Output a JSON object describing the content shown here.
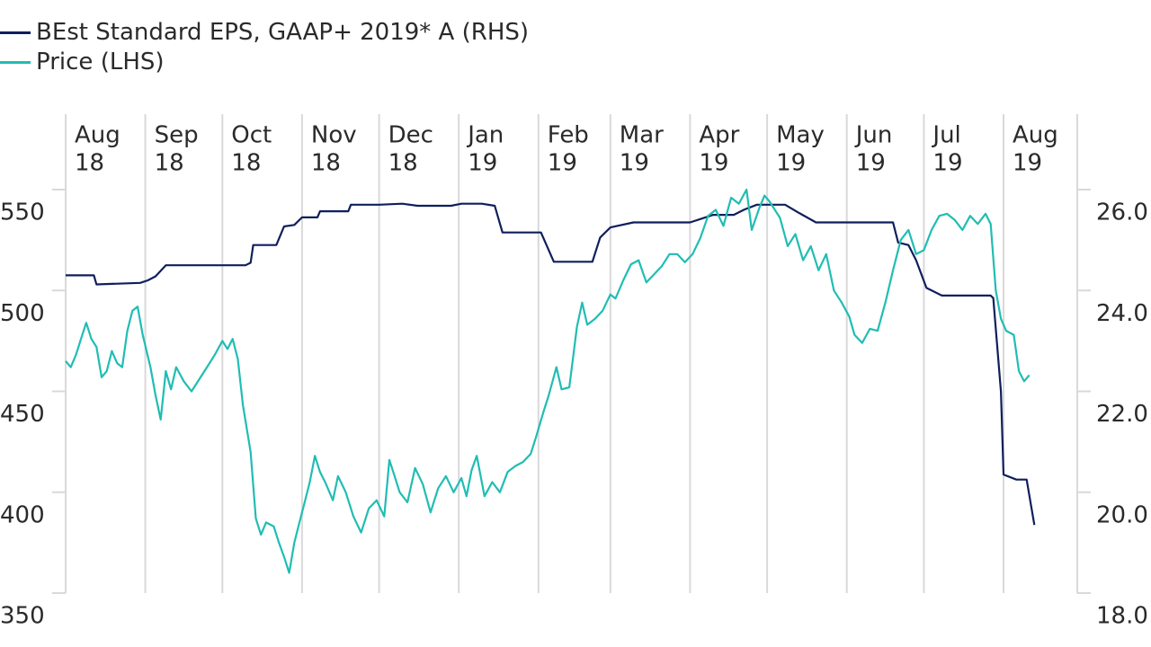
{
  "colors": {
    "eps": "#0f1f5c",
    "price": "#20bdb3",
    "grid": "#d9d9d9",
    "text": "#2a2a2a"
  },
  "legend": {
    "eps_label": "BEst Standard EPS, GAAP+ 2019* A (RHS)",
    "price_label": "Price (LHS)"
  },
  "chart_data": {
    "type": "line",
    "title": "",
    "months": [
      {
        "month": "Aug",
        "year": "18",
        "date": "2018-08-01"
      },
      {
        "month": "Sep",
        "year": "18",
        "date": "2018-09-01"
      },
      {
        "month": "Oct",
        "year": "18",
        "date": "2018-10-01"
      },
      {
        "month": "Nov",
        "year": "18",
        "date": "2018-11-01"
      },
      {
        "month": "Dec",
        "year": "18",
        "date": "2018-12-01"
      },
      {
        "month": "Jan",
        "year": "19",
        "date": "2019-01-01"
      },
      {
        "month": "Feb",
        "year": "19",
        "date": "2019-02-01"
      },
      {
        "month": "Mar",
        "year": "19",
        "date": "2019-03-01"
      },
      {
        "month": "Apr",
        "year": "19",
        "date": "2019-04-01"
      },
      {
        "month": "May",
        "year": "19",
        "date": "2019-05-01"
      },
      {
        "month": "Jun",
        "year": "19",
        "date": "2019-06-01"
      },
      {
        "month": "Jul",
        "year": "19",
        "date": "2019-07-01"
      },
      {
        "month": "Aug",
        "year": "19",
        "date": "2019-08-01"
      }
    ],
    "left_axis": {
      "label": "",
      "range": [
        350,
        550
      ],
      "ticks": [
        "350",
        "400",
        "450",
        "500",
        "550"
      ]
    },
    "right_axis": {
      "label": "",
      "range": [
        18.0,
        26.0
      ],
      "ticks": [
        "18.0",
        "20.0",
        "22.0",
        "24.0",
        "26.0"
      ]
    },
    "grid": "vertical at month starts",
    "legend_position": "top-left",
    "series": [
      {
        "name": "BEst Standard EPS, GAAP+ 2019* A (RHS)",
        "axis": "right",
        "points": [
          [
            "2018-08-01",
            24.3
          ],
          [
            "2018-08-12",
            24.3
          ],
          [
            "2018-08-13",
            24.12
          ],
          [
            "2018-08-30",
            24.15
          ],
          [
            "2018-09-02",
            24.2
          ],
          [
            "2018-09-05",
            24.28
          ],
          [
            "2018-09-09",
            24.5
          ],
          [
            "2018-09-25",
            24.5
          ],
          [
            "2018-10-10",
            24.5
          ],
          [
            "2018-10-12",
            24.55
          ],
          [
            "2018-10-13",
            24.9
          ],
          [
            "2018-10-22",
            24.9
          ],
          [
            "2018-10-25",
            25.27
          ],
          [
            "2018-10-29",
            25.3
          ],
          [
            "2018-11-01",
            25.45
          ],
          [
            "2018-11-07",
            25.45
          ],
          [
            "2018-11-08",
            25.57
          ],
          [
            "2018-11-19",
            25.57
          ],
          [
            "2018-11-20",
            25.7
          ],
          [
            "2018-12-01",
            25.7
          ],
          [
            "2018-12-10",
            25.72
          ],
          [
            "2018-12-16",
            25.68
          ],
          [
            "2018-12-29",
            25.68
          ],
          [
            "2019-01-02",
            25.72
          ],
          [
            "2019-01-10",
            25.72
          ],
          [
            "2019-01-15",
            25.68
          ],
          [
            "2019-01-18",
            25.15
          ],
          [
            "2019-02-02",
            25.15
          ],
          [
            "2019-02-07",
            24.57
          ],
          [
            "2019-02-22",
            24.57
          ],
          [
            "2019-02-25",
            25.05
          ],
          [
            "2019-03-01",
            25.25
          ],
          [
            "2019-03-10",
            25.35
          ],
          [
            "2019-03-25",
            25.35
          ],
          [
            "2019-04-01",
            25.35
          ],
          [
            "2019-04-07",
            25.45
          ],
          [
            "2019-04-10",
            25.5
          ],
          [
            "2019-04-18",
            25.5
          ],
          [
            "2019-04-22",
            25.6
          ],
          [
            "2019-04-27",
            25.7
          ],
          [
            "2019-05-08",
            25.7
          ],
          [
            "2019-05-13",
            25.55
          ],
          [
            "2019-05-20",
            25.35
          ],
          [
            "2019-05-30",
            25.35
          ],
          [
            "2019-06-19",
            25.35
          ],
          [
            "2019-06-21",
            24.95
          ],
          [
            "2019-06-25",
            24.9
          ],
          [
            "2019-06-28",
            24.6
          ],
          [
            "2019-07-02",
            24.05
          ],
          [
            "2019-07-08",
            23.9
          ],
          [
            "2019-07-27",
            23.9
          ],
          [
            "2019-07-28",
            23.85
          ],
          [
            "2019-07-31",
            22.0
          ],
          [
            "2019-08-01",
            20.35
          ],
          [
            "2019-08-06",
            20.25
          ],
          [
            "2019-08-10",
            20.25
          ],
          [
            "2019-08-13",
            19.35
          ]
        ]
      },
      {
        "name": "Price (LHS)",
        "axis": "left",
        "points": [
          [
            "2018-08-01",
            465
          ],
          [
            "2018-08-03",
            462
          ],
          [
            "2018-08-05",
            468
          ],
          [
            "2018-08-07",
            476
          ],
          [
            "2018-08-09",
            484
          ],
          [
            "2018-08-11",
            476
          ],
          [
            "2018-08-13",
            472
          ],
          [
            "2018-08-15",
            457
          ],
          [
            "2018-08-17",
            460
          ],
          [
            "2018-08-19",
            470
          ],
          [
            "2018-08-21",
            464
          ],
          [
            "2018-08-23",
            462
          ],
          [
            "2018-08-25",
            480
          ],
          [
            "2018-08-27",
            490
          ],
          [
            "2018-08-29",
            492
          ],
          [
            "2018-08-31",
            478
          ],
          [
            "2018-09-03",
            462
          ],
          [
            "2018-09-05",
            448
          ],
          [
            "2018-09-07",
            436
          ],
          [
            "2018-09-09",
            460
          ],
          [
            "2018-09-11",
            451
          ],
          [
            "2018-09-13",
            462
          ],
          [
            "2018-09-16",
            455
          ],
          [
            "2018-09-19",
            450
          ],
          [
            "2018-09-22",
            456
          ],
          [
            "2018-09-25",
            462
          ],
          [
            "2018-09-28",
            468
          ],
          [
            "2018-10-01",
            475
          ],
          [
            "2018-10-03",
            471
          ],
          [
            "2018-10-05",
            476
          ],
          [
            "2018-10-07",
            466
          ],
          [
            "2018-10-09",
            443
          ],
          [
            "2018-10-12",
            420
          ],
          [
            "2018-10-14",
            387
          ],
          [
            "2018-10-16",
            379
          ],
          [
            "2018-10-18",
            385
          ],
          [
            "2018-10-21",
            383
          ],
          [
            "2018-10-23",
            375
          ],
          [
            "2018-10-25",
            368
          ],
          [
            "2018-10-27",
            360
          ],
          [
            "2018-10-29",
            375
          ],
          [
            "2018-10-31",
            385
          ],
          [
            "2018-11-02",
            395
          ],
          [
            "2018-11-04",
            405
          ],
          [
            "2018-11-06",
            418
          ],
          [
            "2018-11-08",
            410
          ],
          [
            "2018-11-10",
            405
          ],
          [
            "2018-11-13",
            396
          ],
          [
            "2018-11-15",
            408
          ],
          [
            "2018-11-18",
            400
          ],
          [
            "2018-11-21",
            388
          ],
          [
            "2018-11-24",
            380
          ],
          [
            "2018-11-27",
            392
          ],
          [
            "2018-11-30",
            396
          ],
          [
            "2018-12-03",
            388
          ],
          [
            "2018-12-05",
            416
          ],
          [
            "2018-12-07",
            408
          ],
          [
            "2018-12-09",
            400
          ],
          [
            "2018-12-12",
            395
          ],
          [
            "2018-12-15",
            412
          ],
          [
            "2018-12-18",
            404
          ],
          [
            "2018-12-21",
            390
          ],
          [
            "2018-12-24",
            402
          ],
          [
            "2018-12-27",
            408
          ],
          [
            "2018-12-30",
            400
          ],
          [
            "2019-01-02",
            407
          ],
          [
            "2019-01-04",
            398
          ],
          [
            "2019-01-06",
            411
          ],
          [
            "2019-01-08",
            418
          ],
          [
            "2019-01-11",
            398
          ],
          [
            "2019-01-14",
            405
          ],
          [
            "2019-01-17",
            400
          ],
          [
            "2019-01-20",
            410
          ],
          [
            "2019-01-23",
            413
          ],
          [
            "2019-01-26",
            415
          ],
          [
            "2019-01-29",
            419
          ],
          [
            "2019-01-31",
            427
          ],
          [
            "2019-02-03",
            440
          ],
          [
            "2019-02-05",
            448
          ],
          [
            "2019-02-08",
            462
          ],
          [
            "2019-02-10",
            451
          ],
          [
            "2019-02-13",
            452
          ],
          [
            "2019-02-16",
            482
          ],
          [
            "2019-02-18",
            494
          ],
          [
            "2019-02-20",
            483
          ],
          [
            "2019-02-23",
            486
          ],
          [
            "2019-02-26",
            490
          ],
          [
            "2019-03-01",
            498
          ],
          [
            "2019-03-03",
            496
          ],
          [
            "2019-03-06",
            505
          ],
          [
            "2019-03-09",
            513
          ],
          [
            "2019-03-12",
            515
          ],
          [
            "2019-03-15",
            504
          ],
          [
            "2019-03-18",
            508
          ],
          [
            "2019-03-21",
            512
          ],
          [
            "2019-03-24",
            518
          ],
          [
            "2019-03-27",
            518
          ],
          [
            "2019-03-30",
            514
          ],
          [
            "2019-04-02",
            518
          ],
          [
            "2019-04-05",
            526
          ],
          [
            "2019-04-08",
            537
          ],
          [
            "2019-04-11",
            540
          ],
          [
            "2019-04-14",
            532
          ],
          [
            "2019-04-17",
            546
          ],
          [
            "2019-04-20",
            543
          ],
          [
            "2019-04-23",
            550
          ],
          [
            "2019-04-25",
            530
          ],
          [
            "2019-04-28",
            541
          ],
          [
            "2019-04-30",
            547
          ],
          [
            "2019-05-02",
            544
          ],
          [
            "2019-05-04",
            540
          ],
          [
            "2019-05-06",
            536
          ],
          [
            "2019-05-09",
            522
          ],
          [
            "2019-05-12",
            528
          ],
          [
            "2019-05-15",
            515
          ],
          [
            "2019-05-18",
            522
          ],
          [
            "2019-05-21",
            510
          ],
          [
            "2019-05-24",
            518
          ],
          [
            "2019-05-27",
            500
          ],
          [
            "2019-05-30",
            494
          ],
          [
            "2019-06-02",
            487
          ],
          [
            "2019-06-04",
            478
          ],
          [
            "2019-06-07",
            474
          ],
          [
            "2019-06-10",
            481
          ],
          [
            "2019-06-13",
            480
          ],
          [
            "2019-06-16",
            494
          ],
          [
            "2019-06-19",
            510
          ],
          [
            "2019-06-22",
            525
          ],
          [
            "2019-06-25",
            530
          ],
          [
            "2019-06-28",
            518
          ],
          [
            "2019-07-01",
            520
          ],
          [
            "2019-07-04",
            530
          ],
          [
            "2019-07-07",
            537
          ],
          [
            "2019-07-10",
            538
          ],
          [
            "2019-07-13",
            535
          ],
          [
            "2019-07-16",
            530
          ],
          [
            "2019-07-19",
            537
          ],
          [
            "2019-07-22",
            533
          ],
          [
            "2019-07-25",
            538
          ],
          [
            "2019-07-27",
            533
          ],
          [
            "2019-07-29",
            500
          ],
          [
            "2019-07-31",
            486
          ],
          [
            "2019-08-02",
            480
          ],
          [
            "2019-08-05",
            478
          ],
          [
            "2019-08-07",
            460
          ],
          [
            "2019-08-09",
            455
          ],
          [
            "2019-08-11",
            458
          ]
        ]
      }
    ]
  }
}
